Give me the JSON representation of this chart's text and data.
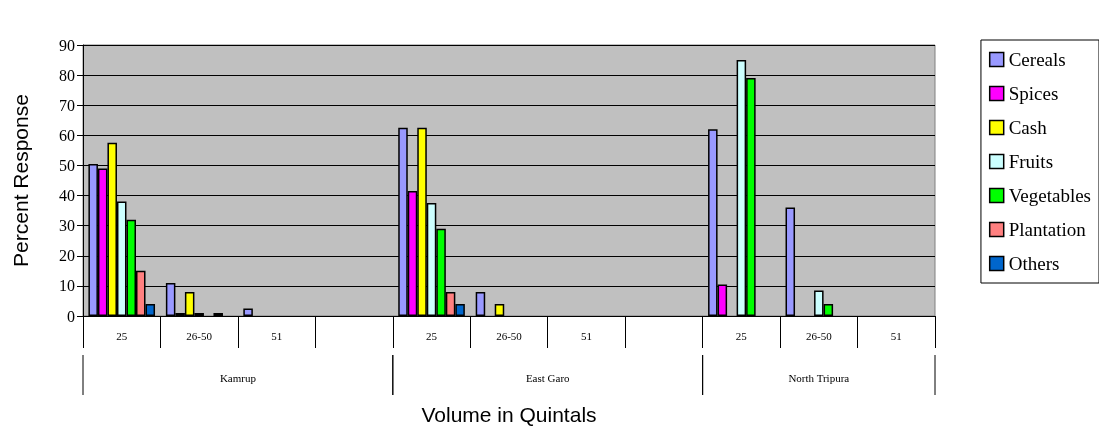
{
  "chart_data": {
    "type": "bar",
    "xlabel": "Volume in Quintals",
    "ylabel": "Percent Response",
    "categories": [
      "25",
      "26-50",
      "51",
      null,
      "25",
      "26-50",
      "51",
      null,
      "25",
      "26-50",
      "51"
    ],
    "annotations": [
      "Kamrup",
      "East Garo",
      "North Tripura"
    ],
    "series": [
      {
        "name": "Cereals",
        "color": "#9999ff",
        "values": [
          50.5,
          11,
          2.5,
          null,
          62.5,
          8,
          null,
          null,
          62,
          36,
          null
        ]
      },
      {
        "name": "Spices",
        "color": "#ff00ff",
        "values": [
          49,
          1,
          null,
          null,
          41.5,
          null,
          null,
          null,
          10.5,
          null,
          null
        ]
      },
      {
        "name": "Cash",
        "color": "#ffff00",
        "values": [
          57.5,
          8,
          null,
          null,
          62.5,
          4,
          null,
          null,
          null,
          null,
          null
        ]
      },
      {
        "name": "Fruits",
        "color": "#ccffff",
        "values": [
          38,
          1,
          null,
          null,
          37.5,
          null,
          null,
          null,
          85,
          8.5,
          null
        ]
      },
      {
        "name": "Vegetables",
        "color": "#00ff00",
        "values": [
          32,
          null,
          null,
          null,
          29,
          null,
          null,
          null,
          79,
          4,
          null
        ]
      },
      {
        "name": "Plantation",
        "color": "#ff8080",
        "values": [
          15,
          1,
          null,
          null,
          8,
          null,
          null,
          null,
          null,
          null,
          null
        ]
      },
      {
        "name": "Others",
        "color": "#0066cc",
        "values": [
          4,
          null,
          null,
          null,
          4,
          null,
          null,
          null,
          null,
          null,
          null
        ]
      }
    ],
    "ylim": [
      0,
      90
    ],
    "yticks": [
      0,
      10,
      20,
      30,
      40,
      50,
      60,
      70,
      80,
      90
    ],
    "grid": "y",
    "legend": "right"
  }
}
